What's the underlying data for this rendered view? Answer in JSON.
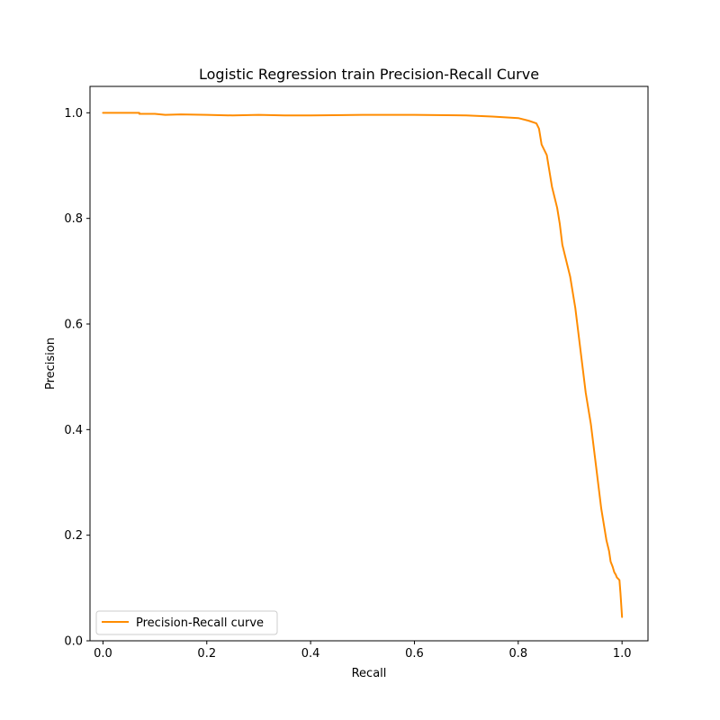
{
  "chart_data": {
    "type": "line",
    "title": "Logistic Regression train Precision-Recall Curve",
    "xlabel": "Recall",
    "ylabel": "Precision",
    "xlim": [
      -0.025,
      1.05
    ],
    "ylim": [
      0.0,
      1.05
    ],
    "xticks": [
      0.0,
      0.2,
      0.4,
      0.6,
      0.8,
      1.0
    ],
    "xtick_labels": [
      "0.0",
      "0.2",
      "0.4",
      "0.6",
      "0.8",
      "1.0"
    ],
    "yticks": [
      0.0,
      0.2,
      0.4,
      0.6,
      0.8,
      1.0
    ],
    "ytick_labels": [
      "0.0",
      "0.2",
      "0.4",
      "0.6",
      "0.8",
      "1.0"
    ],
    "grid": false,
    "legend_position": "lower-left",
    "series": [
      {
        "name": "Precision-Recall curve",
        "color": "#ff8c00",
        "x": [
          0.0,
          0.02,
          0.05,
          0.07,
          0.07,
          0.1,
          0.12,
          0.15,
          0.2,
          0.25,
          0.3,
          0.35,
          0.4,
          0.5,
          0.6,
          0.7,
          0.75,
          0.8,
          0.82,
          0.835,
          0.84,
          0.845,
          0.85,
          0.855,
          0.86,
          0.865,
          0.87,
          0.875,
          0.88,
          0.885,
          0.89,
          0.895,
          0.9,
          0.905,
          0.91,
          0.915,
          0.92,
          0.925,
          0.93,
          0.935,
          0.94,
          0.945,
          0.95,
          0.955,
          0.96,
          0.965,
          0.97,
          0.975,
          0.978,
          0.982,
          0.985,
          0.988,
          0.99,
          0.995,
          0.997,
          0.999,
          1.0
        ],
        "y": [
          1.0,
          1.0,
          1.0,
          1.0,
          0.998,
          0.998,
          0.996,
          0.997,
          0.996,
          0.995,
          0.996,
          0.995,
          0.995,
          0.996,
          0.996,
          0.995,
          0.993,
          0.99,
          0.985,
          0.98,
          0.97,
          0.94,
          0.93,
          0.92,
          0.89,
          0.86,
          0.84,
          0.82,
          0.79,
          0.75,
          0.73,
          0.71,
          0.69,
          0.66,
          0.63,
          0.59,
          0.55,
          0.51,
          0.47,
          0.44,
          0.41,
          0.37,
          0.33,
          0.29,
          0.25,
          0.22,
          0.19,
          0.17,
          0.15,
          0.14,
          0.13,
          0.125,
          0.12,
          0.115,
          0.09,
          0.06,
          0.045
        ]
      }
    ]
  }
}
